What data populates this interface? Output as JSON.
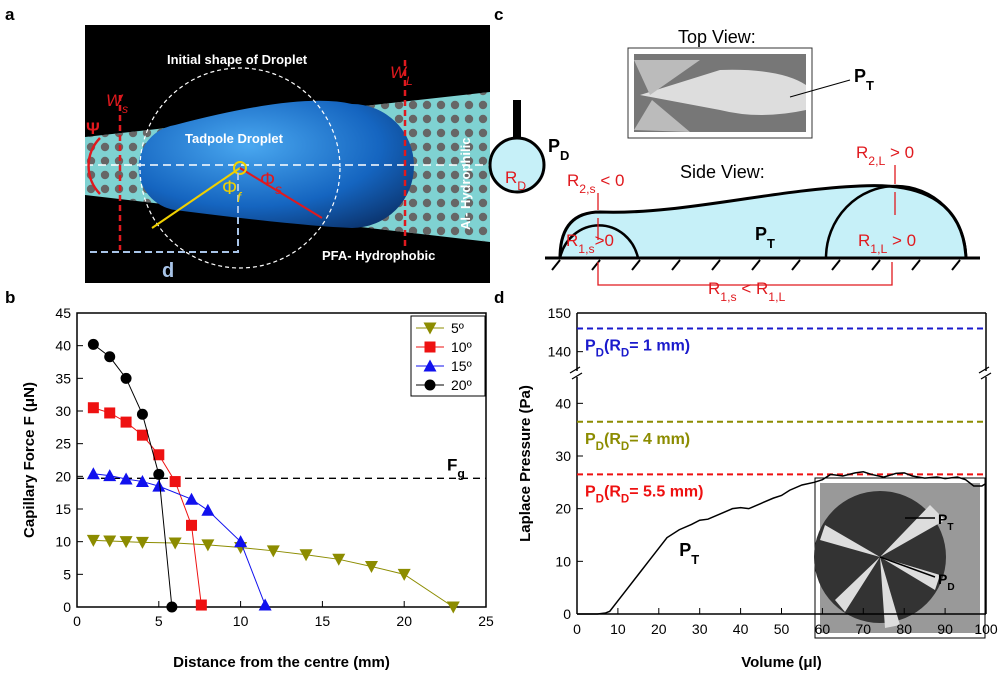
{
  "panel_labels": [
    "a",
    "b",
    "c",
    "d"
  ],
  "panel_a": {
    "initial_shape": "Initial shape of Droplet",
    "ws": [
      {
        "t": "W",
        "italic": true
      },
      {
        "t": "s",
        "sub": true,
        "italic": true
      }
    ],
    "wl": [
      {
        "t": "W",
        "italic": true
      },
      {
        "t": "L",
        "sub": true,
        "italic": true
      }
    ],
    "psi": "Ψ",
    "tadpole": "Tadpole Droplet",
    "phi_f": [
      {
        "t": "Φ"
      },
      {
        "t": "f",
        "sub": true,
        "italic": true
      }
    ],
    "phi_s": [
      {
        "t": "Φ"
      },
      {
        "t": "s",
        "sub": true,
        "italic": true
      }
    ],
    "hydrophilic": "Al- Hydrophilic",
    "hydrophobic": "PFA- Hydrophobic",
    "d": "d"
  },
  "panel_c": {
    "top_view": "Top View:",
    "pt_top": [
      {
        "t": "P"
      },
      {
        "t": "T",
        "sub": true
      }
    ],
    "pd": [
      {
        "t": "P"
      },
      {
        "t": "D",
        "sub": true
      }
    ],
    "rd": [
      {
        "t": "R"
      },
      {
        "t": "D",
        "sub": true
      }
    ],
    "side_view": "Side View:",
    "r2s": [
      {
        "t": "R"
      },
      {
        "t": "2,s",
        "sub": true
      },
      {
        "t": " < 0"
      }
    ],
    "r2l": [
      {
        "t": "R"
      },
      {
        "t": "2,L",
        "sub": true
      },
      {
        "t": " > 0"
      }
    ],
    "r1s": [
      {
        "t": "R"
      },
      {
        "t": "1,s",
        "sub": true
      },
      {
        "t": ">0"
      }
    ],
    "pt_side": [
      {
        "t": "P"
      },
      {
        "t": "T",
        "sub": true
      }
    ],
    "r1l": [
      {
        "t": "R"
      },
      {
        "t": "1,L",
        "sub": true
      },
      {
        "t": " > 0"
      }
    ],
    "compare": [
      {
        "t": "R"
      },
      {
        "t": "1,s",
        "sub": true
      },
      {
        "t": " < R"
      },
      {
        "t": "1,L",
        "sub": true
      }
    ]
  },
  "chart_data": [
    {
      "type": "scatter-line",
      "x_label": "Distance from the centre (mm)",
      "y_label": "Capillary Force F (μN)",
      "xlim": [
        0,
        25
      ],
      "xticks": [
        0,
        5,
        10,
        15,
        20,
        25
      ],
      "ylim": [
        0,
        45
      ],
      "yticks": [
        0,
        5,
        10,
        15,
        20,
        25,
        30,
        35,
        40,
        45
      ],
      "legend": "top-right",
      "series": [
        {
          "name": "5º",
          "color": "#8c8c00",
          "marker": "triangle-down",
          "x": [
            1,
            2,
            3,
            4,
            6,
            8,
            10,
            12,
            14,
            16,
            18,
            20,
            23
          ],
          "values": [
            10.2,
            10.1,
            10,
            9.9,
            9.8,
            9.5,
            9.1,
            8.6,
            8,
            7.3,
            6.2,
            5,
            0
          ]
        },
        {
          "name": "10º",
          "color": "#ee1111",
          "marker": "square",
          "x": [
            1,
            2,
            3,
            4,
            5,
            6,
            7,
            7.6
          ],
          "values": [
            30.5,
            29.7,
            28.3,
            26.3,
            23.3,
            19.2,
            12.5,
            0.3
          ]
        },
        {
          "name": "15º",
          "color": "#1111ee",
          "marker": "triangle",
          "x": [
            1,
            2,
            3,
            4,
            5,
            7,
            8,
            10,
            11.5
          ],
          "values": [
            20.4,
            20.1,
            19.6,
            19.2,
            18.5,
            16.5,
            14.8,
            10,
            0.3
          ]
        },
        {
          "name": "20º",
          "color": "#000000",
          "marker": "circle",
          "x": [
            1,
            2,
            3,
            4,
            5,
            5.8
          ],
          "values": [
            40.2,
            38.3,
            35,
            29.5,
            20.3,
            0
          ]
        }
      ],
      "ref_lines": [
        {
          "value": 19.7,
          "color": "#000000",
          "label": [
            {
              "t": "F"
            },
            {
              "t": "g",
              "sub": true
            }
          ]
        }
      ]
    },
    {
      "type": "line",
      "x_label": "Volume (μl)",
      "y_label": "Laplace Pressure (Pa)",
      "xlim": [
        0,
        100
      ],
      "xticks": [
        0,
        10,
        20,
        30,
        40,
        50,
        60,
        70,
        80,
        90,
        100
      ],
      "ylim": [
        0,
        45
      ],
      "yticks": [
        0,
        10,
        20,
        30,
        40
      ],
      "ylim_top": [
        135,
        150
      ],
      "yticks_top": [
        140,
        150
      ],
      "series": [
        {
          "color": "#000000",
          "x": [
            0,
            5,
            7,
            8,
            10,
            12,
            15,
            18,
            20,
            22,
            25,
            28,
            30,
            32,
            35,
            38,
            40,
            42,
            45,
            48,
            50,
            52,
            55,
            58,
            60,
            62,
            65,
            68,
            70,
            72,
            75,
            78,
            80,
            82,
            85,
            88,
            90,
            93,
            95,
            97,
            99,
            100
          ],
          "values": [
            0,
            0,
            0.2,
            0.5,
            2.5,
            4.5,
            7.5,
            10.5,
            12.5,
            14.5,
            16,
            17,
            17.8,
            18,
            19,
            20,
            20.2,
            20,
            21,
            22,
            22.5,
            23.5,
            24.5,
            25,
            25.5,
            26.5,
            26.2,
            26.8,
            27,
            26.5,
            26,
            26.7,
            26.8,
            26.2,
            25.8,
            26,
            25.7,
            26,
            25.5,
            24.3,
            24.3,
            24.8
          ],
          "label": [
            {
              "t": "P"
            },
            {
              "t": "T",
              "sub": true
            }
          ]
        }
      ],
      "ref_lines": [
        {
          "value": 146,
          "color": "#1a1acc",
          "label": [
            {
              "t": "P"
            },
            {
              "t": "D",
              "sub": true
            },
            {
              "t": "(R"
            },
            {
              "t": "D",
              "sub": true
            },
            {
              "t": "= 1 mm)"
            }
          ]
        },
        {
          "value": 36.5,
          "color": "#8c8c00",
          "label": [
            {
              "t": "P"
            },
            {
              "t": "D",
              "sub": true
            },
            {
              "t": "(R"
            },
            {
              "t": "D",
              "sub": true
            },
            {
              "t": "= 4 mm)"
            }
          ]
        },
        {
          "value": 26.5,
          "color": "#ee1111",
          "label": [
            {
              "t": "P"
            },
            {
              "t": "D",
              "sub": true
            },
            {
              "t": "(R"
            },
            {
              "t": "D",
              "sub": true
            },
            {
              "t": "= 5.5 mm)"
            }
          ]
        }
      ],
      "inset": {
        "pt": [
          {
            "t": "P"
          },
          {
            "t": "T",
            "sub": true
          }
        ],
        "pd": [
          {
            "t": "P"
          },
          {
            "t": "D",
            "sub": true
          }
        ]
      }
    }
  ]
}
